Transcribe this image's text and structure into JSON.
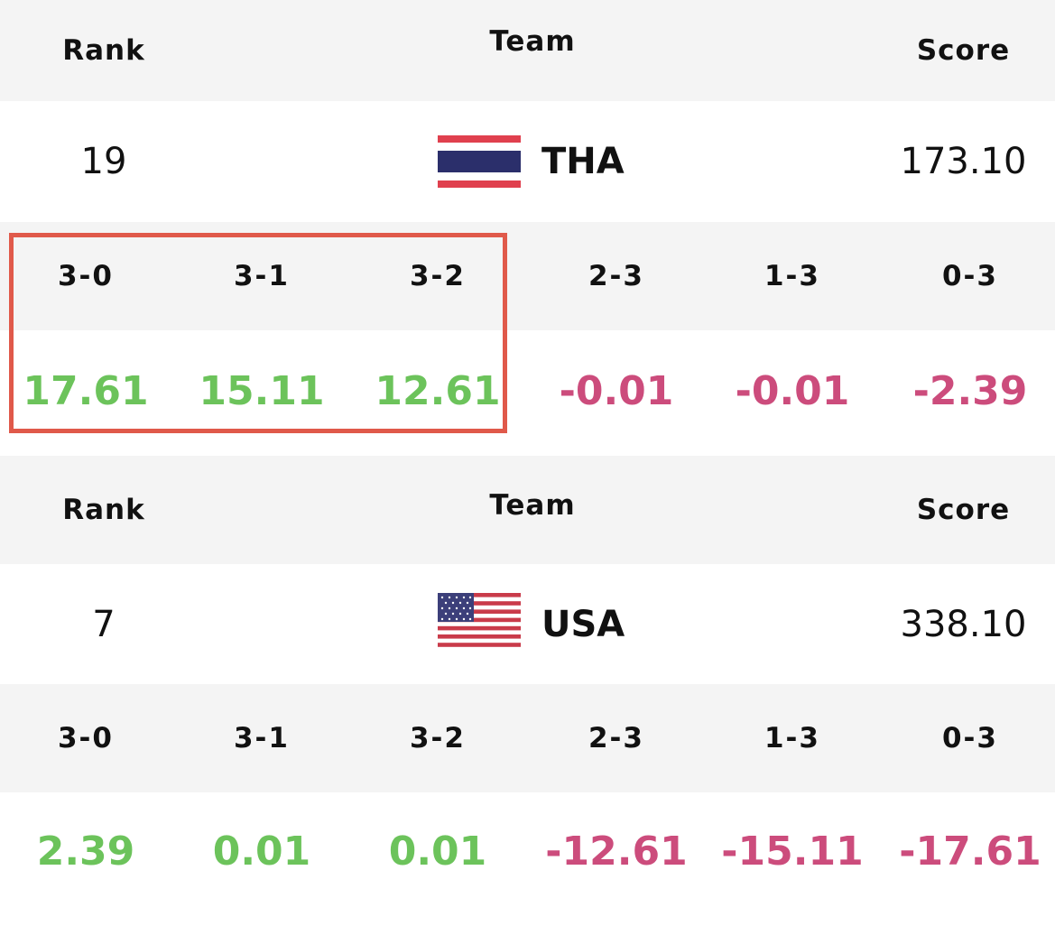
{
  "headers": {
    "rank": "Rank",
    "team": "Team",
    "score": "Score"
  },
  "colors": {
    "positive": "#6cc35b",
    "negative": "#cc4c7c",
    "highlight": "#e0594a"
  },
  "teams": [
    {
      "rank": "19",
      "code": "THA",
      "flag_icon": "thailand-flag-icon",
      "score": "173.10",
      "scenarios": [
        {
          "label": "3-0",
          "value": "17.61"
        },
        {
          "label": "3-1",
          "value": "15.11"
        },
        {
          "label": "3-2",
          "value": "12.61"
        },
        {
          "label": "2-3",
          "value": "-0.01"
        },
        {
          "label": "1-3",
          "value": "-0.01"
        },
        {
          "label": "0-3",
          "value": "-2.39"
        }
      ]
    },
    {
      "rank": "7",
      "code": "USA",
      "flag_icon": "usa-flag-icon",
      "score": "338.10",
      "scenarios": [
        {
          "label": "3-0",
          "value": "2.39"
        },
        {
          "label": "3-1",
          "value": "0.01"
        },
        {
          "label": "3-2",
          "value": "0.01"
        },
        {
          "label": "2-3",
          "value": "-12.61"
        },
        {
          "label": "1-3",
          "value": "-15.11"
        },
        {
          "label": "0-3",
          "value": "-17.61"
        }
      ]
    }
  ]
}
